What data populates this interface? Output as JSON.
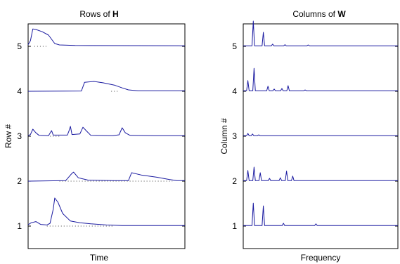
{
  "chart_data": [
    {
      "type": "line",
      "title_prefix": "Rows of ",
      "title_bold": "H",
      "xlabel": "Time",
      "ylabel": "Row #",
      "yticks": [
        "1",
        "2",
        "3",
        "4",
        "5"
      ],
      "series": [
        {
          "row": 1,
          "baseline": [
            0.12,
            0.55
          ],
          "points": [
            [
              0,
              0.05
            ],
            [
              0.02,
              0.12
            ],
            [
              0.05,
              0.16
            ],
            [
              0.08,
              0.06
            ],
            [
              0.12,
              0.04
            ],
            [
              0.14,
              0.1
            ],
            [
              0.16,
              0.6
            ],
            [
              0.17,
              1.0
            ],
            [
              0.19,
              0.85
            ],
            [
              0.22,
              0.45
            ],
            [
              0.27,
              0.18
            ],
            [
              0.33,
              0.12
            ],
            [
              0.4,
              0.08
            ],
            [
              0.5,
              0.04
            ],
            [
              0.6,
              0.02
            ],
            [
              0.8,
              0.02
            ],
            [
              1,
              0.02
            ]
          ]
        },
        {
          "row": 2,
          "baseline": [
            0.2,
            0.92
          ],
          "points": [
            [
              0,
              0
            ],
            [
              0.24,
              0.02
            ],
            [
              0.28,
              0.28
            ],
            [
              0.29,
              0.32
            ],
            [
              0.32,
              0.12
            ],
            [
              0.38,
              0.04
            ],
            [
              0.55,
              0.02
            ],
            [
              0.64,
              0.02
            ],
            [
              0.66,
              0.3
            ],
            [
              0.72,
              0.22
            ],
            [
              0.82,
              0.14
            ],
            [
              0.9,
              0.06
            ],
            [
              0.95,
              0.02
            ],
            [
              1,
              0.02
            ]
          ]
        },
        {
          "row": 3,
          "baseline": [
            0.14,
            0.2
          ],
          "points": [
            [
              0,
              0.02
            ],
            [
              0.015,
              0.06
            ],
            [
              0.03,
              0.25
            ],
            [
              0.05,
              0.12
            ],
            [
              0.07,
              0.03
            ],
            [
              0.13,
              0.02
            ],
            [
              0.15,
              0.2
            ],
            [
              0.16,
              0.04
            ],
            [
              0.25,
              0.04
            ],
            [
              0.26,
              0.18
            ],
            [
              0.27,
              0.35
            ],
            [
              0.28,
              0.06
            ],
            [
              0.33,
              0.08
            ],
            [
              0.35,
              0.32
            ],
            [
              0.37,
              0.2
            ],
            [
              0.4,
              0.03
            ],
            [
              0.54,
              0.02
            ],
            [
              0.58,
              0.05
            ],
            [
              0.6,
              0.3
            ],
            [
              0.62,
              0.12
            ],
            [
              0.65,
              0.03
            ],
            [
              0.8,
              0.02
            ],
            [
              1,
              0.02
            ]
          ]
        },
        {
          "row": 4,
          "baseline": [
            0.53,
            0.58
          ],
          "points": [
            [
              0,
              0
            ],
            [
              0.34,
              0.01
            ],
            [
              0.36,
              0.32
            ],
            [
              0.42,
              0.35
            ],
            [
              0.48,
              0.3
            ],
            [
              0.55,
              0.22
            ],
            [
              0.6,
              0.12
            ],
            [
              0.64,
              0.05
            ],
            [
              0.7,
              0.02
            ],
            [
              1,
              0.02
            ]
          ]
        },
        {
          "row": 5,
          "baseline": [
            0.04,
            0.12
          ],
          "points": [
            [
              0,
              0.06
            ],
            [
              0.015,
              0.2
            ],
            [
              0.03,
              0.62
            ],
            [
              0.05,
              0.6
            ],
            [
              0.09,
              0.52
            ],
            [
              0.13,
              0.4
            ],
            [
              0.17,
              0.1
            ],
            [
              0.2,
              0.05
            ],
            [
              0.3,
              0.03
            ],
            [
              1,
              0.02
            ]
          ]
        }
      ]
    },
    {
      "type": "line",
      "title_prefix": "Columns of ",
      "title_bold": "W",
      "xlabel": "Frequency",
      "ylabel": "Column #",
      "yticks": [
        "1",
        "2",
        "3",
        "4",
        "5"
      ],
      "series": [
        {
          "row": 1,
          "peaks": [
            [
              0.065,
              0.82
            ],
            [
              0.13,
              0.72
            ],
            [
              0.26,
              0.1
            ],
            [
              0.47,
              0.08
            ]
          ]
        },
        {
          "row": 2,
          "peaks": [
            [
              0.03,
              0.38
            ],
            [
              0.07,
              0.5
            ],
            [
              0.11,
              0.3
            ],
            [
              0.17,
              0.1
            ],
            [
              0.24,
              0.12
            ],
            [
              0.28,
              0.36
            ],
            [
              0.32,
              0.18
            ]
          ]
        },
        {
          "row": 3,
          "peaks": [
            [
              0.03,
              0.1
            ],
            [
              0.06,
              0.08
            ],
            [
              0.1,
              0.05
            ]
          ]
        },
        {
          "row": 4,
          "peaks": [
            [
              0.03,
              0.38
            ],
            [
              0.07,
              0.82
            ],
            [
              0.16,
              0.18
            ],
            [
              0.2,
              0.08
            ],
            [
              0.25,
              0.1
            ],
            [
              0.29,
              0.2
            ],
            [
              0.4,
              0.05
            ]
          ]
        },
        {
          "row": 5,
          "peaks": [
            [
              0.065,
              0.9
            ],
            [
              0.13,
              0.5
            ],
            [
              0.19,
              0.08
            ],
            [
              0.27,
              0.06
            ],
            [
              0.42,
              0.05
            ]
          ]
        }
      ]
    }
  ]
}
